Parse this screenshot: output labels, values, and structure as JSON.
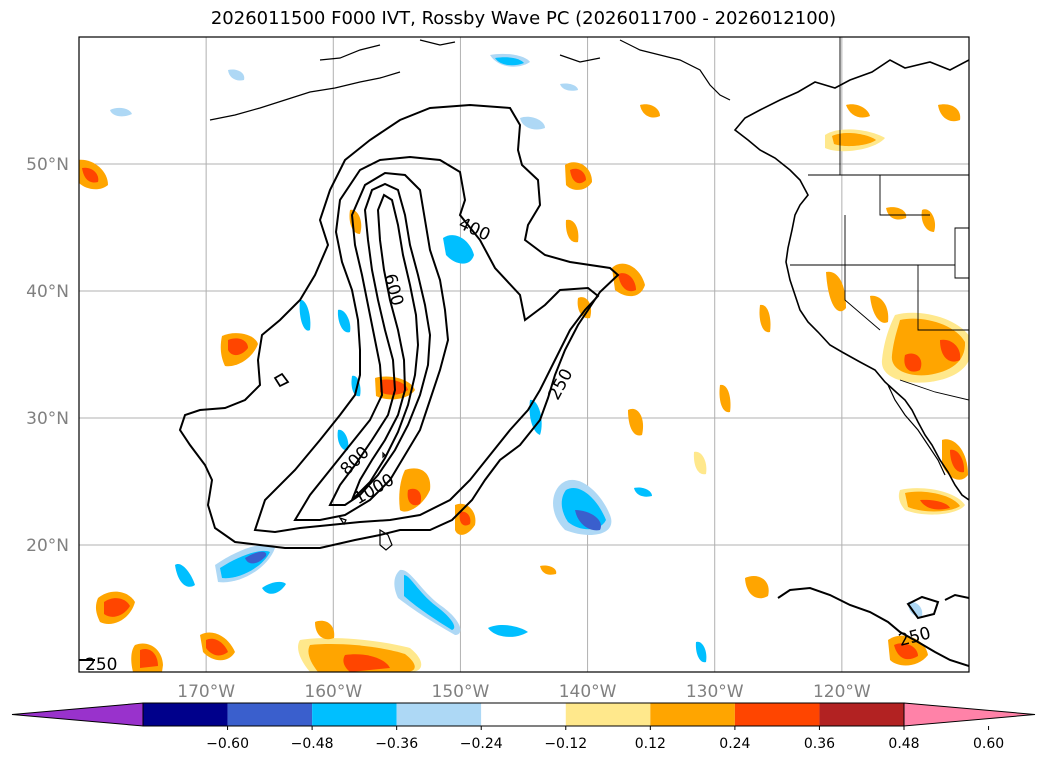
{
  "title": "2026011500 F000 IVT, Rossby Wave PC (2026011700 - 2026012100)",
  "map": {
    "lon_range": [
      -180,
      -110
    ],
    "lat_range": [
      10,
      60
    ],
    "lat_ticks": [
      {
        "value": 20,
        "label": "20°N"
      },
      {
        "value": 30,
        "label": "30°N"
      },
      {
        "value": 40,
        "label": "40°N"
      },
      {
        "value": 50,
        "label": "50°N"
      }
    ],
    "lon_ticks": [
      {
        "value": -170,
        "label": "170°W"
      },
      {
        "value": -160,
        "label": "160°W"
      },
      {
        "value": -150,
        "label": "150°W"
      },
      {
        "value": -140,
        "label": "140°W"
      },
      {
        "value": -130,
        "label": "130°W"
      },
      {
        "value": -120,
        "label": "120°W"
      }
    ],
    "grid": true,
    "ivt_contour_labels": [
      "250",
      "400",
      "600",
      "800",
      "1000",
      "250",
      "250"
    ]
  },
  "colorbar": {
    "labels": [
      "−0.60",
      "−0.48",
      "−0.36",
      "−0.24",
      "−0.12",
      "0.12",
      "0.24",
      "0.36",
      "0.48",
      "0.60"
    ],
    "colors": [
      "#9932cc",
      "#00008b",
      "#3a5fcd",
      "#00bfff",
      "#add8f5",
      "#ffffff",
      "#ffe88c",
      "#ffa500",
      "#ff4500",
      "#b22222",
      "#ff82a8"
    ],
    "extend": "both"
  }
}
